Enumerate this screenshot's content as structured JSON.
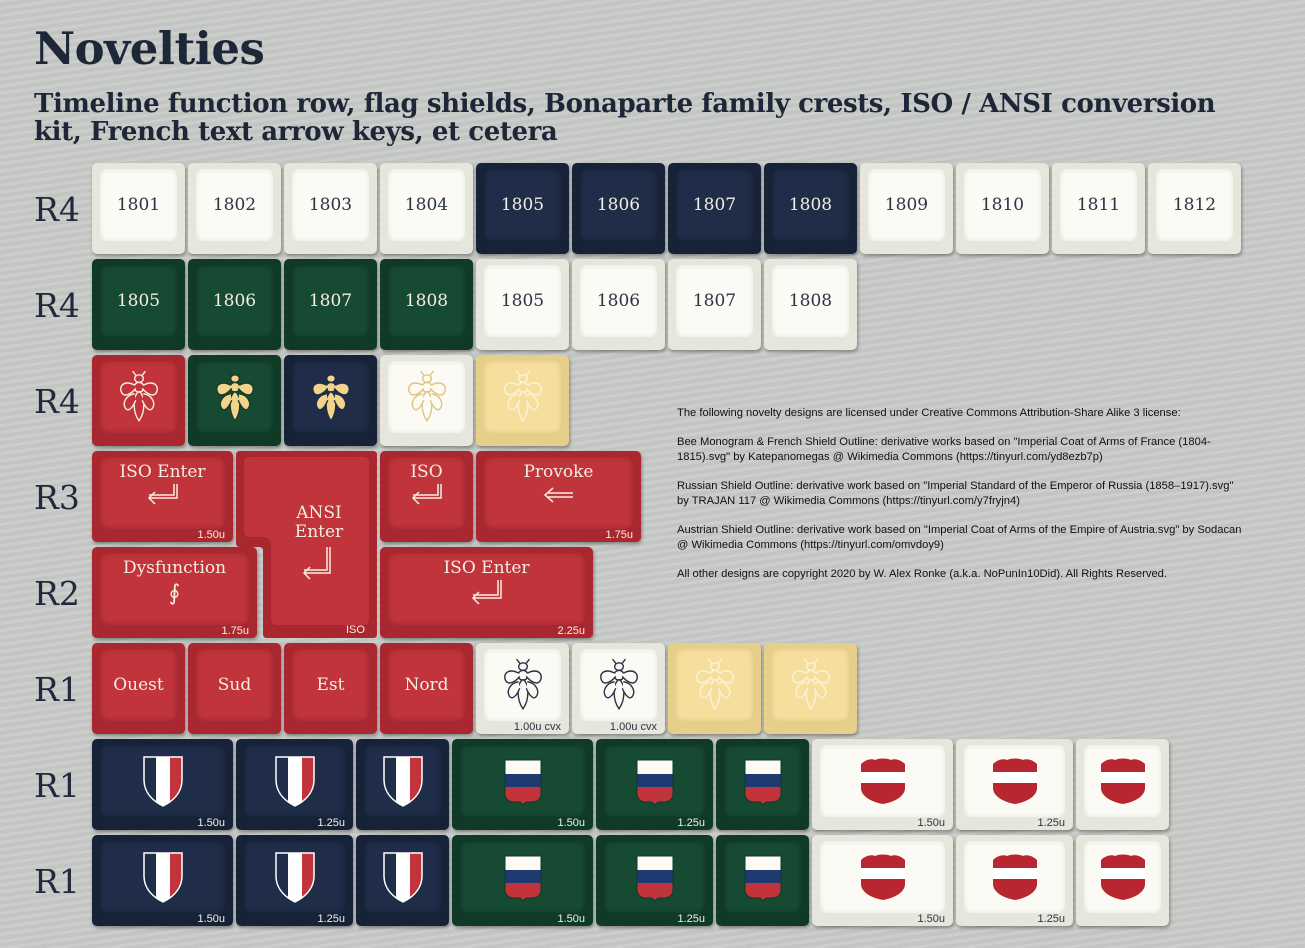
{
  "title": "Novelties",
  "subtitle": "Timeline function row, flag shields, Bonaparte family crests, ISO / ANSI conversion kit, French text arrow keys, et cetera",
  "row_labels": [
    "R4",
    "R4",
    "R4",
    "R3",
    "R2",
    "R1",
    "R1",
    "R1"
  ],
  "years_row1": [
    "1801",
    "1802",
    "1803",
    "1804",
    "1805",
    "1806",
    "1807",
    "1808",
    "1809",
    "1810",
    "1811",
    "1812"
  ],
  "years_row2": [
    "1805",
    "1806",
    "1807",
    "1808",
    "1805",
    "1806",
    "1807",
    "1808"
  ],
  "enter_keys": {
    "iso_enter_1": {
      "label": "ISO Enter",
      "size": "1.50u"
    },
    "ansi_enter": {
      "label": "ANSI Enter",
      "size": "ISO"
    },
    "iso_small": {
      "label": "ISO"
    },
    "provoke": {
      "label": "Provoke",
      "size": "1.75u"
    },
    "dysfunction": {
      "label": "Dysfunction",
      "glyph": "∮",
      "size": "1.75u"
    },
    "iso_enter_2": {
      "label": "ISO Enter",
      "size": "2.25u"
    }
  },
  "arrow_keys": [
    "Ouest",
    "Sud",
    "Est",
    "Nord"
  ],
  "bee_sizes": [
    "1.00u cvx",
    "1.00u cvx"
  ],
  "shield_sizes": [
    "1.50u",
    "1.25u",
    "1.50u",
    "1.25u",
    "1.50u",
    "1.25u"
  ],
  "license": [
    "The following novelty designs are licensed under Creative Commons Attribution-Share Alike 3 license:",
    "Bee Monogram & French Shield Outline: derivative works based on \"Imperial Coat of Arms of France (1804-1815).svg\" by Katepanomegas @ Wikimedia Commons (https://tinyurl.com/yd8ezb7p)",
    "Russian Shield Outline: derivative work based on \"Imperial Standard of the Emperor of Russia (1858–1917).svg\" by TRAJAN 117 @ Wikimedia Commons (https://tinyurl.com/y7fryjn4)",
    "Austrian Shield Outline: derivative work based on \"Imperial Coat of Arms of the Empire of Austria.svg\" by Sodacan @ Wikimedia Commons (https://tinyurl.com/omvdoy9)",
    "All other designs are copyright 2020 by W. Alex Ronke (a.k.a. NoPunIn10Did). All Rights Reserved."
  ],
  "colors": {
    "navy": "#1f2d49",
    "green": "#174a33",
    "red": "#c2343c",
    "white": "#fbfaf4",
    "cream": "#f6df9d"
  },
  "icons": [
    "bee-icon",
    "french-shield-icon",
    "russian-shield-icon",
    "austrian-shield-icon",
    "return-arrow-icon",
    "left-arrow-icon"
  ]
}
